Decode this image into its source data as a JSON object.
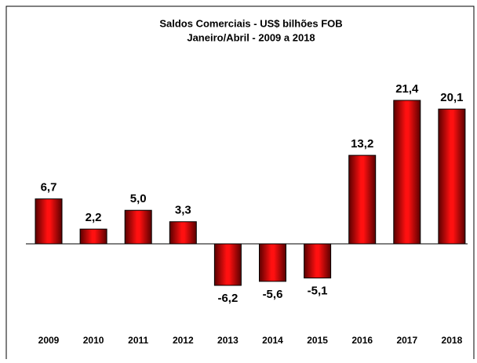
{
  "chart_data": {
    "type": "bar",
    "title": "Saldos Comerciais - US$ bilhões FOB",
    "subtitle": "Janeiro/Abril - 2009 a 2018",
    "categories": [
      "2009",
      "2010",
      "2011",
      "2012",
      "2013",
      "2014",
      "2015",
      "2016",
      "2017",
      "2018"
    ],
    "values": [
      6.7,
      2.2,
      5.0,
      3.3,
      -6.2,
      -5.6,
      -5.1,
      13.2,
      21.4,
      20.1
    ],
    "value_labels": [
      "6,7",
      "2,2",
      "5,0",
      "3,3",
      "-6,2",
      "-5,6",
      "-5,1",
      "13,2",
      "21,4",
      "20,1"
    ],
    "color": "#e00000"
  }
}
